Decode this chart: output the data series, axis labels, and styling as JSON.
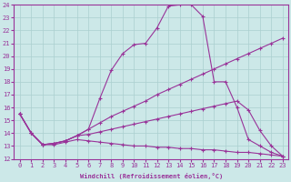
{
  "xlabel": "Windchill (Refroidissement éolien,°C)",
  "bg_color": "#cce8e8",
  "line_color": "#993399",
  "xlim": [
    -0.5,
    23.5
  ],
  "ylim": [
    12,
    24
  ],
  "xticks": [
    0,
    1,
    2,
    3,
    4,
    5,
    6,
    7,
    8,
    9,
    10,
    11,
    12,
    13,
    14,
    15,
    16,
    17,
    18,
    19,
    20,
    21,
    22,
    23
  ],
  "yticks": [
    12,
    13,
    14,
    15,
    16,
    17,
    18,
    19,
    20,
    21,
    22,
    23,
    24
  ],
  "line1_x": [
    0,
    1,
    2,
    3,
    4,
    5,
    6,
    7,
    8,
    9,
    10,
    11,
    12,
    13,
    14,
    15,
    16,
    17,
    18,
    19,
    20,
    21,
    22,
    23
  ],
  "line1_y": [
    15.5,
    14.0,
    13.1,
    13.2,
    13.4,
    13.8,
    14.3,
    16.7,
    18.9,
    20.2,
    20.9,
    21.0,
    22.2,
    23.9,
    24.0,
    24.0,
    23.1,
    18.0,
    18.0,
    16.0,
    13.5,
    13.0,
    12.5,
    12.2
  ],
  "line2_x": [
    0,
    1,
    2,
    3,
    4,
    5,
    6,
    7,
    8,
    9,
    10,
    11,
    12,
    13,
    14,
    15,
    16,
    17,
    18,
    19,
    20,
    21,
    22,
    23
  ],
  "line2_y": [
    15.5,
    14.0,
    13.1,
    13.2,
    13.4,
    13.8,
    14.3,
    14.8,
    15.3,
    15.7,
    16.1,
    16.5,
    17.0,
    17.4,
    17.8,
    18.2,
    18.6,
    19.0,
    19.4,
    19.8,
    20.2,
    20.6,
    21.0,
    21.4
  ],
  "line3_x": [
    0,
    1,
    2,
    3,
    4,
    5,
    6,
    7,
    8,
    9,
    10,
    11,
    12,
    13,
    14,
    15,
    16,
    17,
    18,
    19,
    20,
    21,
    22,
    23
  ],
  "line3_y": [
    15.5,
    14.0,
    13.1,
    13.2,
    13.4,
    13.8,
    13.9,
    14.1,
    14.3,
    14.5,
    14.7,
    14.9,
    15.1,
    15.3,
    15.5,
    15.7,
    15.9,
    16.1,
    16.3,
    16.5,
    15.8,
    14.2,
    13.0,
    12.2
  ],
  "line4_x": [
    0,
    1,
    2,
    3,
    4,
    5,
    6,
    7,
    8,
    9,
    10,
    11,
    12,
    13,
    14,
    15,
    16,
    17,
    18,
    19,
    20,
    21,
    22,
    23
  ],
  "line4_y": [
    15.5,
    14.0,
    13.1,
    13.1,
    13.3,
    13.5,
    13.4,
    13.3,
    13.2,
    13.1,
    13.0,
    13.0,
    12.9,
    12.9,
    12.8,
    12.8,
    12.7,
    12.7,
    12.6,
    12.5,
    12.5,
    12.4,
    12.3,
    12.2
  ]
}
